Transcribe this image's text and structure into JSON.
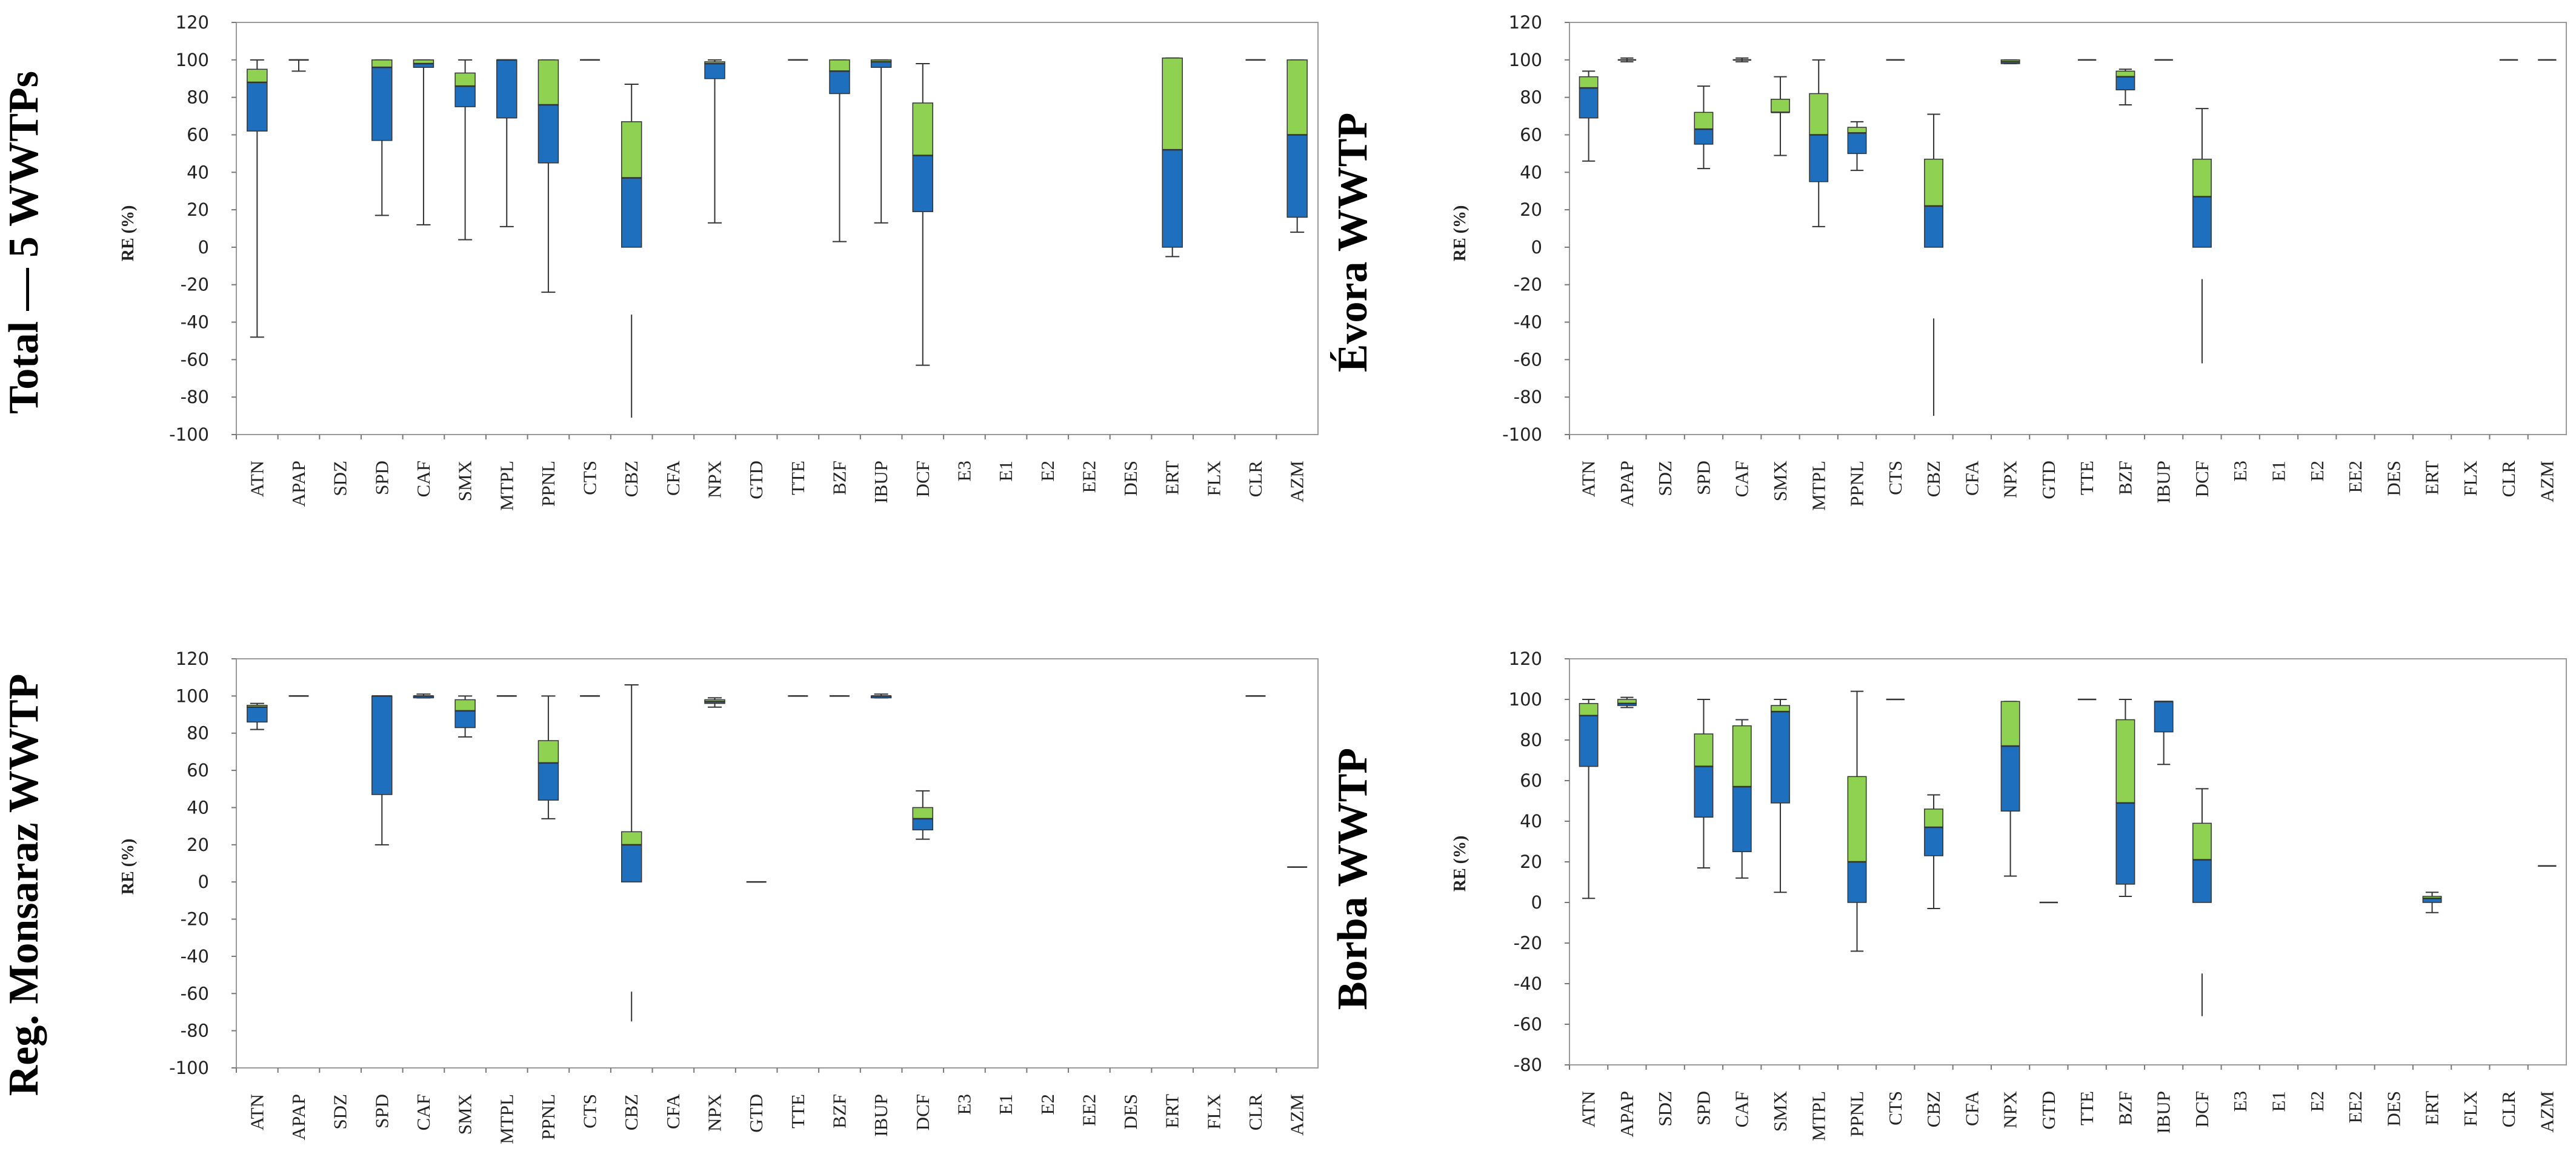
{
  "figure": {
    "category_labels": [
      "ATN",
      "APAP",
      "SDZ",
      "SPD",
      "CAF",
      "SMX",
      "MTPL",
      "PPNL",
      "CTS",
      "CBZ",
      "CFA",
      "NPX",
      "GTD",
      "TTE",
      "BZF",
      "IBUP",
      "DCF",
      "E3",
      "E1",
      "E2",
      "EE2",
      "DES",
      "ERT",
      "FLX",
      "CLR",
      "AZM"
    ],
    "colors": {
      "lower_box": "#1f6fbf",
      "upper_box": "#8fd150",
      "outline": "#333333"
    },
    "legend": "none"
  },
  "chart_data": [
    {
      "type": "boxplot",
      "title": "Total — 5 WWTPs",
      "ylabel": "RE (%)",
      "xlabel": "",
      "ylim": [
        -100,
        120
      ],
      "yticks": [
        "120",
        "100",
        "80",
        "60",
        "40",
        "20",
        "0",
        "-20",
        "-40",
        "-60",
        "-80",
        "-100"
      ],
      "grid": false,
      "categories": [
        "ATN",
        "APAP",
        "SDZ",
        "SPD",
        "CAF",
        "SMX",
        "MTPL",
        "PPNL",
        "CTS",
        "CBZ",
        "CFA",
        "NPX",
        "GTD",
        "TTE",
        "BZF",
        "IBUP",
        "DCF",
        "E3",
        "E1",
        "E2",
        "EE2",
        "DES",
        "ERT",
        "FLX",
        "CLR",
        "AZM"
      ],
      "boxes": {
        "ATN": {
          "min": -48,
          "q1": 62,
          "median": 88,
          "q3": 95,
          "max": 100
        },
        "APAP": {
          "min": 94,
          "q1": 100,
          "median": 100,
          "q3": 100,
          "max": 100
        },
        "SPD": {
          "min": 17,
          "q1": 57,
          "median": 96,
          "q3": 100,
          "max": 100
        },
        "CAF": {
          "min": 12,
          "q1": 96,
          "median": 98,
          "q3": 100,
          "max": 100
        },
        "SMX": {
          "min": 4,
          "q1": 75,
          "median": 86,
          "q3": 93,
          "max": 100
        },
        "MTPL": {
          "min": 11,
          "q1": 69,
          "median": 100,
          "q3": 100,
          "max": 100
        },
        "PPNL": {
          "min": -24,
          "q1": 45,
          "median": 76,
          "q3": 100,
          "max": 100
        },
        "CTS": {
          "min": 100,
          "q1": 100,
          "median": 100,
          "q3": 100,
          "max": 100
        },
        "CBZ": {
          "min": -91,
          "q1": 0,
          "median": 37,
          "q3": 67,
          "max": 87,
          "gap_to": -36
        },
        "NPX": {
          "min": 13,
          "q1": 90,
          "median": 98,
          "q3": 99,
          "max": 100
        },
        "TTE": {
          "min": 100,
          "q1": 100,
          "median": 100,
          "q3": 100,
          "max": 100
        },
        "BZF": {
          "min": 3,
          "q1": 82,
          "median": 94,
          "q3": 100,
          "max": 100
        },
        "IBUP": {
          "min": 13,
          "q1": 96,
          "median": 99,
          "q3": 100,
          "max": 100
        },
        "DCF": {
          "min": -63,
          "q1": 19,
          "median": 49,
          "q3": 77,
          "max": 98
        },
        "ERT": {
          "min": -5,
          "q1": 0,
          "median": 52,
          "q3": 101,
          "max": 101
        },
        "CLR": {
          "min": 100,
          "q1": 100,
          "median": 100,
          "q3": 100,
          "max": 100
        },
        "AZM": {
          "min": 8,
          "q1": 16,
          "median": 60,
          "q3": 100,
          "max": 100
        }
      }
    },
    {
      "type": "boxplot",
      "title": "Évora WWTP",
      "ylabel": "RE (%)",
      "xlabel": "",
      "ylim": [
        -100,
        120
      ],
      "yticks": [
        "120",
        "100",
        "80",
        "60",
        "40",
        "20",
        "0",
        "-20",
        "-40",
        "-60",
        "-80",
        "-100"
      ],
      "grid": false,
      "categories": [
        "ATN",
        "APAP",
        "SDZ",
        "SPD",
        "CAF",
        "SMX",
        "MTPL",
        "PPNL",
        "CTS",
        "CBZ",
        "CFA",
        "NPX",
        "GTD",
        "TTE",
        "BZF",
        "IBUP",
        "DCF",
        "E3",
        "E1",
        "E2",
        "EE2",
        "DES",
        "ERT",
        "FLX",
        "CLR",
        "AZM"
      ],
      "boxes": {
        "ATN": {
          "min": 46,
          "q1": 69,
          "median": 85,
          "q3": 91,
          "max": 94
        },
        "APAP": {
          "min": 99,
          "q1": 100,
          "median": 100,
          "q3": 100,
          "max": 101
        },
        "SPD": {
          "min": 42,
          "q1": 55,
          "median": 63,
          "q3": 72,
          "max": 86
        },
        "CAF": {
          "min": 99,
          "q1": 100,
          "median": 100,
          "q3": 100,
          "max": 101
        },
        "SMX": {
          "min": 49,
          "q1": 72,
          "median": 72,
          "q3": 79,
          "max": 91
        },
        "MTPL": {
          "min": 11,
          "q1": 35,
          "median": 60,
          "q3": 82,
          "max": 100
        },
        "PPNL": {
          "min": 41,
          "q1": 50,
          "median": 61,
          "q3": 64,
          "max": 67
        },
        "CTS": {
          "min": 100,
          "q1": 100,
          "median": 100,
          "q3": 100,
          "max": 100
        },
        "CBZ": {
          "min": -90,
          "q1": 0,
          "median": 22,
          "q3": 47,
          "max": 71,
          "gap_to": -38
        },
        "NPX": {
          "min": 98,
          "q1": 98,
          "median": 99,
          "q3": 100,
          "max": 100
        },
        "TTE": {
          "min": 100,
          "q1": 100,
          "median": 100,
          "q3": 100,
          "max": 100
        },
        "BZF": {
          "min": 76,
          "q1": 84,
          "median": 91,
          "q3": 94,
          "max": 95
        },
        "IBUP": {
          "min": 100,
          "q1": 100,
          "median": 100,
          "q3": 100,
          "max": 100
        },
        "DCF": {
          "min": -62,
          "q1": 0,
          "median": 27,
          "q3": 47,
          "max": 74,
          "gap_to": -17
        },
        "CLR": {
          "min": 100,
          "q1": 100,
          "median": 100,
          "q3": 100,
          "max": 100
        },
        "AZM": {
          "min": 100,
          "q1": 100,
          "median": 100,
          "q3": 100,
          "max": 100
        }
      }
    },
    {
      "type": "boxplot",
      "title": "Reg. Monsaraz WWTP",
      "ylabel": "RE (%)",
      "xlabel": "",
      "ylim": [
        -100,
        120
      ],
      "yticks": [
        "120",
        "100",
        "80",
        "60",
        "40",
        "20",
        "0",
        "-20",
        "-40",
        "-60",
        "-80",
        "-100"
      ],
      "grid": false,
      "categories": [
        "ATN",
        "APAP",
        "SDZ",
        "SPD",
        "CAF",
        "SMX",
        "MTPL",
        "PPNL",
        "CTS",
        "CBZ",
        "CFA",
        "NPX",
        "GTD",
        "TTE",
        "BZF",
        "IBUP",
        "DCF",
        "E3",
        "E1",
        "E2",
        "EE2",
        "DES",
        "ERT",
        "FLX",
        "CLR",
        "AZM"
      ],
      "boxes": {
        "ATN": {
          "min": 82,
          "q1": 86,
          "median": 94,
          "q3": 95,
          "max": 96
        },
        "APAP": {
          "min": 100,
          "q1": 100,
          "median": 100,
          "q3": 100,
          "max": 100
        },
        "SPD": {
          "min": 20,
          "q1": 47,
          "median": 100,
          "q3": 100,
          "max": 100
        },
        "CAF": {
          "min": 99,
          "q1": 99,
          "median": 100,
          "q3": 100,
          "max": 101
        },
        "SMX": {
          "min": 78,
          "q1": 83,
          "median": 92,
          "q3": 98,
          "max": 100
        },
        "MTPL": {
          "min": 100,
          "q1": 100,
          "median": 100,
          "q3": 100,
          "max": 100
        },
        "PPNL": {
          "min": 34,
          "q1": 44,
          "median": 64,
          "q3": 76,
          "max": 100
        },
        "CTS": {
          "min": 100,
          "q1": 100,
          "median": 100,
          "q3": 100,
          "max": 100
        },
        "CBZ": {
          "min": -75,
          "q1": 0,
          "median": 20,
          "q3": 27,
          "max": 106,
          "gap_to": -59
        },
        "NPX": {
          "min": 94,
          "q1": 96,
          "median": 97,
          "q3": 98,
          "max": 99
        },
        "GTD": {
          "min": 0,
          "q1": 0,
          "median": 0,
          "q3": 0,
          "max": 0
        },
        "TTE": {
          "min": 100,
          "q1": 100,
          "median": 100,
          "q3": 100,
          "max": 100
        },
        "BZF": {
          "min": 100,
          "q1": 100,
          "median": 100,
          "q3": 100,
          "max": 100
        },
        "IBUP": {
          "min": 99,
          "q1": 99,
          "median": 100,
          "q3": 100,
          "max": 101
        },
        "DCF": {
          "min": 23,
          "q1": 28,
          "median": 34,
          "q3": 40,
          "max": 49
        },
        "CLR": {
          "min": 100,
          "q1": 100,
          "median": 100,
          "q3": 100,
          "max": 100
        },
        "AZM": {
          "min": 8,
          "q1": 8,
          "median": 8,
          "q3": 8,
          "max": 8
        }
      }
    },
    {
      "type": "boxplot",
      "title": "Borba WWTP",
      "ylabel": "RE (%)",
      "xlabel": "",
      "ylim": [
        -80,
        120
      ],
      "yticks": [
        "120",
        "100",
        "80",
        "60",
        "40",
        "20",
        "0",
        "-20",
        "-40",
        "-60",
        "-80"
      ],
      "grid": false,
      "categories": [
        "ATN",
        "APAP",
        "SDZ",
        "SPD",
        "CAF",
        "SMX",
        "MTPL",
        "PPNL",
        "CTS",
        "CBZ",
        "CFA",
        "NPX",
        "GTD",
        "TTE",
        "BZF",
        "IBUP",
        "DCF",
        "E3",
        "E1",
        "E2",
        "EE2",
        "DES",
        "ERT",
        "FLX",
        "CLR",
        "AZM"
      ],
      "boxes": {
        "ATN": {
          "min": 2,
          "q1": 67,
          "median": 92,
          "q3": 98,
          "max": 100
        },
        "APAP": {
          "min": 96,
          "q1": 97,
          "median": 98,
          "q3": 100,
          "max": 101
        },
        "SPD": {
          "min": 17,
          "q1": 42,
          "median": 67,
          "q3": 83,
          "max": 100
        },
        "CAF": {
          "min": 12,
          "q1": 25,
          "median": 57,
          "q3": 87,
          "max": 90
        },
        "SMX": {
          "min": 5,
          "q1": 49,
          "median": 94,
          "q3": 97,
          "max": 100
        },
        "PPNL": {
          "min": -24,
          "q1": 0,
          "median": 20,
          "q3": 62,
          "max": 104
        },
        "CTS": {
          "min": 100,
          "q1": 100,
          "median": 100,
          "q3": 100,
          "max": 100
        },
        "CBZ": {
          "min": -3,
          "q1": 23,
          "median": 37,
          "q3": 46,
          "max": 53
        },
        "NPX": {
          "min": 13,
          "q1": 45,
          "median": 77,
          "q3": 99,
          "max": 99
        },
        "GTD": {
          "min": 0,
          "q1": 0,
          "median": 0,
          "q3": 0,
          "max": 0
        },
        "TTE": {
          "min": 100,
          "q1": 100,
          "median": 100,
          "q3": 100,
          "max": 100
        },
        "BZF": {
          "min": 3,
          "q1": 9,
          "median": 49,
          "q3": 90,
          "max": 100
        },
        "IBUP": {
          "min": 68,
          "q1": 84,
          "median": 99,
          "q3": 99,
          "max": 99
        },
        "DCF": {
          "min": -56,
          "q1": 0,
          "median": 21,
          "q3": 39,
          "max": 56,
          "gap_to": -35
        },
        "ERT": {
          "min": -5,
          "q1": 0,
          "median": 2,
          "q3": 3,
          "max": 5
        },
        "AZM": {
          "min": 18,
          "q1": 18,
          "median": 18,
          "q3": 18,
          "max": 18
        }
      }
    }
  ]
}
